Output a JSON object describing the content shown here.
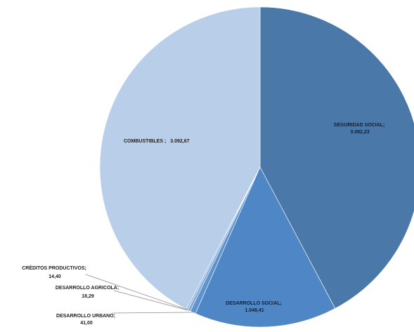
{
  "chart_data": {
    "type": "pie",
    "title": "",
    "legend": "none",
    "slices": [
      {
        "name": "SEGURIDAD SOCIAL",
        "value": 3082.23,
        "label_name": "SEGURIDAD SOCIAL;",
        "label_value": "3.082,23",
        "color": "#4a78a8"
      },
      {
        "name": "DESARROLLO SOCIAL",
        "value": 1048.41,
        "label_name": "DESARROLLO SOCIAL;",
        "label_value": "1.048,41",
        "color": "#4f86c6"
      },
      {
        "name": "DESARROLLO URBANO",
        "value": 41.0,
        "label_name": "DESARROLLO URBANO;",
        "label_value": "41,00",
        "color": "#5f93cf"
      },
      {
        "name": "DESARROLLO AGRICOLA",
        "value": 18.29,
        "label_name": "DESARROLLO AGRICOLA;",
        "label_value": "18,29",
        "color": "#7ca6d8"
      },
      {
        "name": "CRÉDITOS PRODUCTIVOS",
        "value": 14.4,
        "label_name": "CRÉDITOS PRODUCTIVOS;",
        "label_value": "14,40",
        "color": "#9dbde2"
      },
      {
        "name": "COMBUSTIBLES",
        "value": 3092.67,
        "label_name": "COMBUSTIBLES ;",
        "label_value": "3.092,67",
        "color": "#b9cfe9"
      }
    ]
  }
}
